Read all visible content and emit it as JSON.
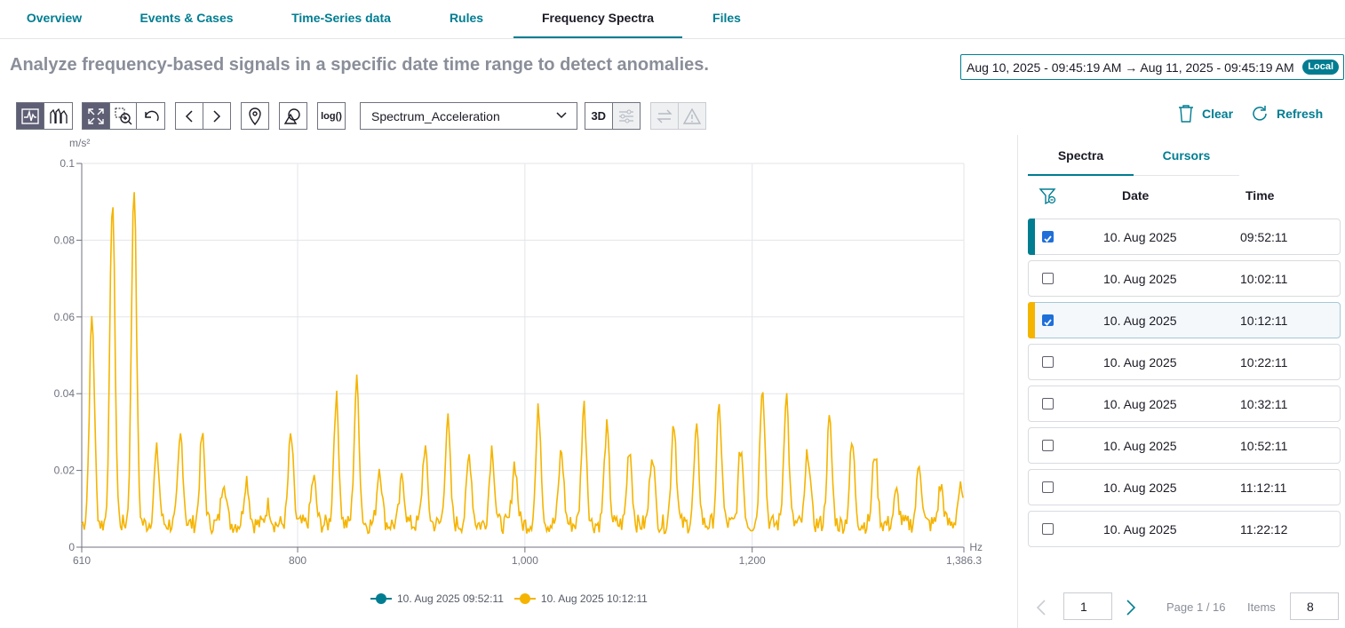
{
  "tabs": [
    "Overview",
    "Events & Cases",
    "Time-Series data",
    "Rules",
    "Frequency Spectra",
    "Files"
  ],
  "active_tab": "Frequency Spectra",
  "subtitle": "Analyze frequency-based signals in a specific date time range to detect anomalies.",
  "date_range": {
    "from": "Aug 10, 2025 - 09:45:19 AM",
    "to": "Aug 11, 2025 - 09:45:19 AM",
    "badge": "Local"
  },
  "toolbar": {
    "log_label": "log()",
    "spectrum_select": "Spectrum_Acceleration",
    "three_d_label": "3D",
    "clear_label": "Clear",
    "refresh_label": "Refresh"
  },
  "panel": {
    "tabs": [
      "Spectra",
      "Cursors"
    ],
    "columns": {
      "date": "Date",
      "time": "Time"
    },
    "rows": [
      {
        "date": "10. Aug 2025",
        "time": "09:52:11",
        "checked": true,
        "color": "#007d91"
      },
      {
        "date": "10. Aug 2025",
        "time": "10:02:11",
        "checked": false,
        "color": ""
      },
      {
        "date": "10. Aug 2025",
        "time": "10:12:11",
        "checked": true,
        "color": "#f5b400"
      },
      {
        "date": "10. Aug 2025",
        "time": "10:22:11",
        "checked": false,
        "color": ""
      },
      {
        "date": "10. Aug 2025",
        "time": "10:32:11",
        "checked": false,
        "color": ""
      },
      {
        "date": "10. Aug 2025",
        "time": "10:52:11",
        "checked": false,
        "color": ""
      },
      {
        "date": "10. Aug 2025",
        "time": "11:12:11",
        "checked": false,
        "color": ""
      },
      {
        "date": "10. Aug 2025",
        "time": "11:22:12",
        "checked": false,
        "color": ""
      }
    ],
    "pager": {
      "page_input": "1",
      "page_label": "Page 1 / 16",
      "items_label": "Items",
      "items_value": "8"
    }
  },
  "colors": {
    "accent": "#007d91",
    "series1": "#007d91",
    "series2": "#f5b400"
  },
  "chart_data": {
    "type": "line",
    "title": "",
    "xlabel": "Hz",
    "ylabel": "m/s²",
    "xlim": [
      610,
      1386.3
    ],
    "ylim": [
      0,
      0.1
    ],
    "x_ticks": [
      "610",
      "800",
      "1,000",
      "1,200",
      "1,386.3"
    ],
    "y_ticks": [
      "0",
      "0.02",
      "0.04",
      "0.06",
      "0.08",
      "0.1"
    ],
    "grid": true,
    "legend": "bottom-center",
    "baseline": 0.006,
    "series": [
      {
        "name": "10. Aug 2025 09:52:11",
        "color": "#007d91",
        "peaks": []
      },
      {
        "name": "10. Aug 2025 10:12:11",
        "color": "#f5b400",
        "peaks": [
          [
            619,
            0.06
          ],
          [
            637,
            0.091
          ],
          [
            656,
            0.095
          ],
          [
            676,
            0.025
          ],
          [
            697,
            0.029
          ],
          [
            716,
            0.029
          ],
          [
            735,
            0.018
          ],
          [
            755,
            0.018
          ],
          [
            774,
            0.011
          ],
          [
            794,
            0.029
          ],
          [
            814,
            0.018
          ],
          [
            834,
            0.039
          ],
          [
            852,
            0.043
          ],
          [
            872,
            0.021
          ],
          [
            892,
            0.018
          ],
          [
            912,
            0.026
          ],
          [
            932,
            0.033
          ],
          [
            951,
            0.024
          ],
          [
            971,
            0.026
          ],
          [
            991,
            0.022
          ],
          [
            1012,
            0.036
          ],
          [
            1032,
            0.025
          ],
          [
            1052,
            0.037
          ],
          [
            1072,
            0.031
          ],
          [
            1092,
            0.026
          ],
          [
            1112,
            0.025
          ],
          [
            1131,
            0.033
          ],
          [
            1151,
            0.03
          ],
          [
            1171,
            0.036
          ],
          [
            1190,
            0.026
          ],
          [
            1209,
            0.043
          ],
          [
            1230,
            0.04
          ],
          [
            1249,
            0.025
          ],
          [
            1268,
            0.033
          ],
          [
            1288,
            0.027
          ],
          [
            1308,
            0.025
          ],
          [
            1327,
            0.014
          ],
          [
            1347,
            0.022
          ],
          [
            1366,
            0.016
          ],
          [
            1383,
            0.015
          ]
        ]
      }
    ]
  }
}
